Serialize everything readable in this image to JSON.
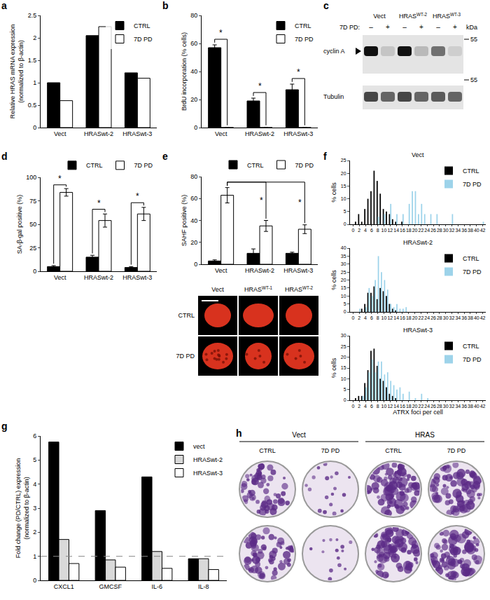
{
  "chart_data": [
    {
      "panel": "a",
      "type": "bar",
      "y_label": [
        "Relative HRAS mRNA expression",
        "(normalized to β-actin)"
      ],
      "categories": [
        "Vect",
        "HRASwt-2",
        "HRASwt-3"
      ],
      "series": [
        {
          "name": "CTRL",
          "color": "#000000",
          "values": [
            1.0,
            2.05,
            1.22
          ]
        },
        {
          "name": "7D PD",
          "color": "#ffffff",
          "values": [
            0.6,
            2.25,
            1.1
          ]
        }
      ],
      "ylim": [
        0,
        2.5
      ],
      "yticks": [
        0,
        0.5,
        1,
        1.5,
        2,
        2.5
      ],
      "legend": "top right"
    },
    {
      "panel": "b",
      "type": "bar",
      "y_label": [
        "BrdU incorporation (% cells)"
      ],
      "categories": [
        "Vect",
        "HRASwt-2",
        "HRASwt-3"
      ],
      "series": [
        {
          "name": "CTRL",
          "color": "#000000",
          "values": [
            57,
            19,
            27
          ],
          "errors": [
            2,
            2,
            4
          ]
        },
        {
          "name": "7D PD",
          "color": "#ffffff",
          "values": [
            0,
            0,
            0
          ],
          "errors": [
            0,
            0,
            0
          ]
        }
      ],
      "significance": [
        {
          "text": "*",
          "from": [
            "Vect",
            "CTRL"
          ],
          "to": [
            "Vect",
            "7D PD"
          ],
          "y": 63
        },
        {
          "text": "*",
          "from": [
            "HRASwt-2",
            "CTRL"
          ],
          "to": [
            "HRASwt-2",
            "7D PD"
          ],
          "y": 25
        },
        {
          "text": "*",
          "from": [
            "HRASwt-3",
            "CTRL"
          ],
          "to": [
            "HRASwt-3",
            "7D PD"
          ],
          "y": 35
        }
      ],
      "ylim": [
        0,
        80
      ],
      "yticks": [
        0,
        20,
        40,
        60,
        80
      ],
      "legend": "top right"
    },
    {
      "panel": "c",
      "type": "western_blot",
      "lanes": [
        {
          "text": "Vect"
        },
        {
          "text": "HRAS",
          "sup": "WT-2"
        },
        {
          "text": "HRAS",
          "sup": "WT-3"
        }
      ],
      "treatment_label": "7D PD:",
      "treatment": [
        "–",
        "+",
        "–",
        "+",
        "–",
        "+"
      ],
      "bands": [
        {
          "name": "cyclin A",
          "intensity": [
            1.0,
            0.15,
            1.0,
            0.2,
            0.55,
            0.1
          ]
        },
        {
          "name": "Tubulin",
          "intensity": [
            0.75,
            0.6,
            0.75,
            0.6,
            0.65,
            0.6
          ]
        }
      ],
      "unit": "kDa",
      "markers": [
        55,
        55
      ]
    },
    {
      "panel": "d",
      "type": "bar",
      "y_label": [
        "SA-β-gal positive (%)"
      ],
      "categories": [
        "Vect",
        "HRASwt-2",
        "HRASwt-3"
      ],
      "series": [
        {
          "name": "CTRL",
          "color": "#000000",
          "values": [
            5,
            15,
            4
          ],
          "errors": [
            1,
            2,
            1
          ]
        },
        {
          "name": "7D PD",
          "color": "#ffffff",
          "values": [
            84,
            54,
            61
          ],
          "errors": [
            4,
            7,
            7
          ]
        }
      ],
      "significance": [
        {
          "text": "*",
          "from": [
            "Vect",
            "CTRL"
          ],
          "to": [
            "Vect",
            "7D PD"
          ],
          "y": 92
        },
        {
          "text": "*",
          "from": [
            "HRASwt-2",
            "CTRL"
          ],
          "to": [
            "HRASwt-2",
            "7D PD"
          ],
          "y": 66
        },
        {
          "text": "*",
          "from": [
            "HRASwt-3",
            "CTRL"
          ],
          "to": [
            "HRASwt-3",
            "7D PD"
          ],
          "y": 73
        }
      ],
      "ylim": [
        0,
        100
      ],
      "yticks": [
        0,
        25,
        50,
        75,
        100
      ],
      "legend": "outside top right"
    },
    {
      "panel": "e",
      "type": "bar",
      "y_label": [
        "SAHF positive (%)"
      ],
      "categories": [
        "Vect",
        "HRASwt-2",
        "HRASwt-3"
      ],
      "series": [
        {
          "name": "CTRL",
          "color": "#000000",
          "values": [
            3,
            10,
            10
          ],
          "errors": [
            1,
            4,
            1
          ]
        },
        {
          "name": "7D PD",
          "color": "#ffffff",
          "values": [
            63,
            35,
            32
          ],
          "errors": [
            7,
            5,
            4
          ]
        }
      ],
      "significance": [
        {
          "text": "*",
          "from": [
            "Vect",
            "7D PD"
          ],
          "to": [
            "HRASwt-2",
            "7D PD"
          ],
          "y": 75
        },
        {
          "text": "*",
          "from": [
            "Vect",
            "7D PD"
          ],
          "to": [
            "HRASwt-3",
            "7D PD"
          ],
          "y": 75
        }
      ],
      "ylim": [
        0,
        80
      ],
      "yticks": [
        0,
        20,
        40,
        60,
        80
      ],
      "legend": "outside top right"
    },
    {
      "type": "micrographs",
      "columns": [
        {
          "text": "Vect"
        },
        {
          "text": "HRAS",
          "sup": "WT-1"
        },
        {
          "text": "HRAS",
          "sup": "WT-2"
        }
      ],
      "rows": [
        "CTRL",
        "7D PD"
      ]
    },
    {
      "panel": "f",
      "type": "bar",
      "title": "Vect",
      "y_label": [
        "% cells"
      ],
      "series": [
        {
          "name": "CTRL",
          "color": "#000000",
          "x": [
            1,
            2,
            3,
            4,
            5,
            6,
            7,
            8,
            9,
            10,
            11,
            12,
            13,
            14,
            16
          ],
          "values": [
            1,
            4,
            1,
            6,
            10,
            13,
            21,
            17,
            12,
            6,
            5,
            4,
            2,
            1,
            1
          ]
        },
        {
          "name": "7D PD",
          "color": "#9dd3ea",
          "x": [
            8,
            10,
            12,
            14,
            16,
            18,
            19,
            20,
            21,
            22,
            23,
            25,
            27,
            32,
            42
          ],
          "values": [
            3,
            4,
            8,
            4,
            4,
            8,
            13,
            13,
            4,
            8,
            4,
            4,
            4,
            4,
            1
          ]
        }
      ],
      "xlim": [
        -1,
        43
      ],
      "xticks": [
        0,
        2,
        4,
        6,
        8,
        10,
        12,
        14,
        16,
        18,
        20,
        22,
        24,
        26,
        28,
        30,
        32,
        34,
        36,
        38,
        40,
        42
      ],
      "ylim": [
        0,
        25
      ],
      "yticks": [
        0,
        5,
        10,
        15,
        20,
        25
      ],
      "legend": "top right"
    },
    {
      "type": "bar",
      "title": "HRASwt-2",
      "y_label": [
        "% cells"
      ],
      "series": [
        {
          "name": "CTRL",
          "color": "#000000",
          "x": [
            3,
            4,
            5,
            6,
            7,
            8,
            9,
            10,
            11,
            12,
            13,
            14
          ],
          "values": [
            2,
            5,
            12,
            12,
            16,
            8,
            15,
            13,
            10,
            5,
            2,
            1
          ]
        },
        {
          "name": "7D PD",
          "color": "#9dd3ea",
          "x": [
            2,
            4,
            5,
            6,
            7,
            8,
            9,
            10,
            11,
            12,
            13,
            14,
            15,
            16,
            17
          ],
          "values": [
            2,
            3,
            15,
            10,
            20,
            35,
            25,
            20,
            14,
            5,
            3,
            5,
            2,
            2,
            3
          ]
        }
      ],
      "xlim": [
        -1,
        43
      ],
      "xticks": [
        0,
        2,
        4,
        6,
        8,
        10,
        12,
        14,
        16,
        18,
        20,
        22,
        24,
        26,
        28,
        30,
        32,
        34,
        36,
        38,
        40,
        42
      ],
      "ylim": [
        0,
        40
      ],
      "yticks": [
        0,
        5,
        10,
        15,
        20,
        25,
        30,
        35,
        40
      ],
      "legend": "top right"
    },
    {
      "type": "bar",
      "title": "HRASwt-3",
      "y_label": [
        "% cells"
      ],
      "x_label": "ATRX foci per cell",
      "series": [
        {
          "name": "CTRL",
          "color": "#000000",
          "x": [
            1,
            2,
            3,
            4,
            5,
            6,
            7,
            8,
            9,
            10,
            11,
            12,
            13,
            14
          ],
          "values": [
            1,
            2,
            2,
            8,
            14,
            23,
            24,
            16,
            10,
            9,
            6,
            3,
            2,
            1
          ]
        },
        {
          "name": "7D PD",
          "color": "#9dd3ea",
          "x": [
            3,
            4,
            5,
            6,
            7,
            8,
            9,
            10,
            11,
            12,
            13,
            14,
            15,
            16,
            18,
            20,
            22,
            24
          ],
          "values": [
            2,
            6,
            13,
            19,
            13,
            18,
            18,
            12,
            13,
            9,
            7,
            5,
            6,
            3,
            4,
            1,
            3,
            1
          ]
        }
      ],
      "xlim": [
        -1,
        43
      ],
      "xticks": [
        0,
        2,
        4,
        6,
        8,
        10,
        12,
        14,
        16,
        18,
        20,
        22,
        24,
        26,
        28,
        30,
        32,
        34,
        36,
        38,
        40,
        42
      ],
      "ylim": [
        0,
        30
      ],
      "yticks": [
        0,
        5,
        10,
        15,
        20,
        25,
        30
      ],
      "legend": "top right"
    },
    {
      "panel": "g",
      "type": "bar",
      "y_label": [
        "Fold change (PD/CTRL) expression",
        "(normalized to β-actin)"
      ],
      "categories": [
        "CXCL1",
        "GMCSF",
        "IL-6",
        "IL-8"
      ],
      "series": [
        {
          "name": "vect",
          "color": "#000000",
          "values": [
            5.75,
            2.9,
            4.3,
            0.9
          ]
        },
        {
          "name": "HRASwt-2",
          "color": "#d9d9d9",
          "values": [
            1.7,
            0.85,
            1.2,
            0.9
          ]
        },
        {
          "name": "HRASwt-3",
          "color": "#ffffff",
          "values": [
            0.7,
            0.55,
            0.5,
            0.45
          ]
        }
      ],
      "reference": {
        "value": 1,
        "line_style": "dashed"
      },
      "ylim": [
        0,
        6
      ],
      "yticks": [
        0,
        1,
        2,
        3,
        4,
        5,
        6
      ],
      "legend": "top right"
    },
    {
      "panel": "h",
      "type": "colony_plates",
      "groups": [
        "Vect",
        "HRAS"
      ],
      "conditions": [
        "CTRL",
        "7D PD"
      ],
      "density": [
        [
          0.6,
          0.2,
          0.85,
          0.8
        ],
        [
          0.65,
          0.15,
          0.8,
          0.85
        ]
      ]
    }
  ]
}
